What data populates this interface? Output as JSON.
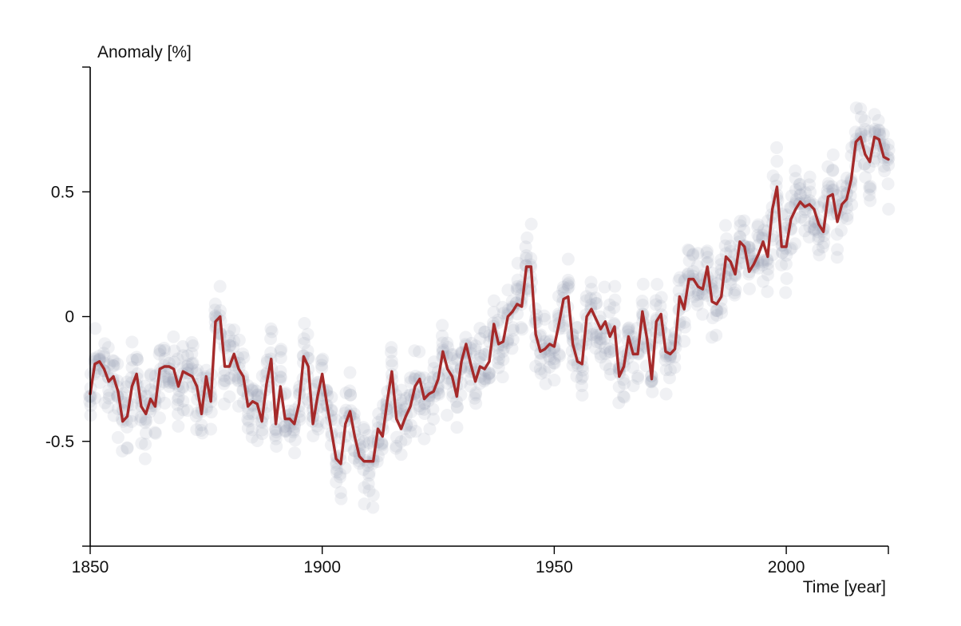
{
  "chart_data": {
    "type": "line",
    "title": "",
    "xlabel": "Time [year]",
    "ylabel": "Anomaly [%]",
    "xlim": [
      1850,
      2022
    ],
    "ylim": [
      -0.92,
      1.0
    ],
    "x_ticks": [
      1850,
      1900,
      1950,
      2000
    ],
    "x_tick_labels": [
      "1850",
      "1900",
      "1950",
      "2000"
    ],
    "y_ticks": [
      0.5,
      0,
      -0.5
    ],
    "y_tick_labels": [
      "0.5",
      "0",
      "-0.5"
    ],
    "grid": false,
    "legend": "none",
    "series": [
      {
        "type": "line",
        "color": "#a52a2a",
        "x": [
          1850,
          1851,
          1852,
          1853,
          1854,
          1855,
          1856,
          1857,
          1858,
          1859,
          1860,
          1861,
          1862,
          1863,
          1864,
          1865,
          1866,
          1867,
          1868,
          1869,
          1870,
          1871,
          1872,
          1873,
          1874,
          1875,
          1876,
          1877,
          1878,
          1879,
          1880,
          1881,
          1882,
          1883,
          1884,
          1885,
          1886,
          1887,
          1888,
          1889,
          1890,
          1891,
          1892,
          1893,
          1894,
          1895,
          1896,
          1897,
          1898,
          1899,
          1900,
          1901,
          1902,
          1903,
          1904,
          1905,
          1906,
          1907,
          1908,
          1909,
          1910,
          1911,
          1912,
          1913,
          1914,
          1915,
          1916,
          1917,
          1918,
          1919,
          1920,
          1921,
          1922,
          1923,
          1924,
          1925,
          1926,
          1927,
          1928,
          1929,
          1930,
          1931,
          1932,
          1933,
          1934,
          1935,
          1936,
          1937,
          1938,
          1939,
          1940,
          1941,
          1942,
          1943,
          1944,
          1945,
          1946,
          1947,
          1948,
          1949,
          1950,
          1951,
          1952,
          1953,
          1954,
          1955,
          1956,
          1957,
          1958,
          1959,
          1960,
          1961,
          1962,
          1963,
          1964,
          1965,
          1966,
          1967,
          1968,
          1969,
          1970,
          1971,
          1972,
          1973,
          1974,
          1975,
          1976,
          1977,
          1978,
          1979,
          1980,
          1981,
          1982,
          1983,
          1984,
          1985,
          1986,
          1987,
          1988,
          1989,
          1990,
          1991,
          1992,
          1993,
          1994,
          1995,
          1996,
          1997,
          1998,
          1999,
          2000,
          2001,
          2002,
          2003,
          2004,
          2005,
          2006,
          2007,
          2008,
          2009,
          2010,
          2011,
          2012,
          2013,
          2014,
          2015,
          2016,
          2017,
          2018,
          2019,
          2020,
          2021,
          2022
        ],
        "values": [
          -0.31,
          -0.19,
          -0.18,
          -0.21,
          -0.26,
          -0.24,
          -0.3,
          -0.42,
          -0.4,
          -0.28,
          -0.23,
          -0.36,
          -0.39,
          -0.33,
          -0.36,
          -0.21,
          -0.2,
          -0.2,
          -0.21,
          -0.28,
          -0.22,
          -0.23,
          -0.24,
          -0.28,
          -0.39,
          -0.24,
          -0.34,
          -0.02,
          0.0,
          -0.2,
          -0.2,
          -0.15,
          -0.21,
          -0.24,
          -0.36,
          -0.34,
          -0.35,
          -0.42,
          -0.27,
          -0.17,
          -0.43,
          -0.28,
          -0.41,
          -0.41,
          -0.43,
          -0.35,
          -0.16,
          -0.2,
          -0.43,
          -0.32,
          -0.23,
          -0.35,
          -0.46,
          -0.57,
          -0.59,
          -0.43,
          -0.38,
          -0.48,
          -0.56,
          -0.58,
          -0.58,
          -0.58,
          -0.45,
          -0.48,
          -0.34,
          -0.22,
          -0.41,
          -0.45,
          -0.4,
          -0.36,
          -0.28,
          -0.25,
          -0.33,
          -0.31,
          -0.3,
          -0.25,
          -0.14,
          -0.21,
          -0.24,
          -0.32,
          -0.18,
          -0.11,
          -0.19,
          -0.26,
          -0.2,
          -0.21,
          -0.18,
          -0.03,
          -0.11,
          -0.1,
          0.0,
          0.02,
          0.05,
          0.04,
          0.2,
          0.2,
          -0.07,
          -0.14,
          -0.13,
          -0.11,
          -0.12,
          -0.03,
          0.07,
          0.08,
          -0.11,
          -0.18,
          -0.19,
          0.0,
          0.03,
          -0.01,
          -0.05,
          -0.02,
          -0.08,
          -0.04,
          -0.24,
          -0.2,
          -0.08,
          -0.15,
          -0.15,
          0.02,
          -0.09,
          -0.25,
          -0.02,
          0.01,
          -0.14,
          -0.15,
          -0.13,
          0.08,
          0.03,
          0.15,
          0.15,
          0.12,
          0.11,
          0.2,
          0.06,
          0.05,
          0.08,
          0.24,
          0.22,
          0.17,
          0.3,
          0.28,
          0.18,
          0.21,
          0.25,
          0.3,
          0.24,
          0.43,
          0.52,
          0.28,
          0.28,
          0.39,
          0.43,
          0.46,
          0.44,
          0.45,
          0.43,
          0.37,
          0.34,
          0.48,
          0.49,
          0.38,
          0.45,
          0.47,
          0.55,
          0.7,
          0.72,
          0.65,
          0.62,
          0.72,
          0.71,
          0.64,
          0.63
        ]
      },
      {
        "type": "scatter",
        "color": "#9aa3b8",
        "note_kind": "ensemble-members"
      }
    ]
  }
}
